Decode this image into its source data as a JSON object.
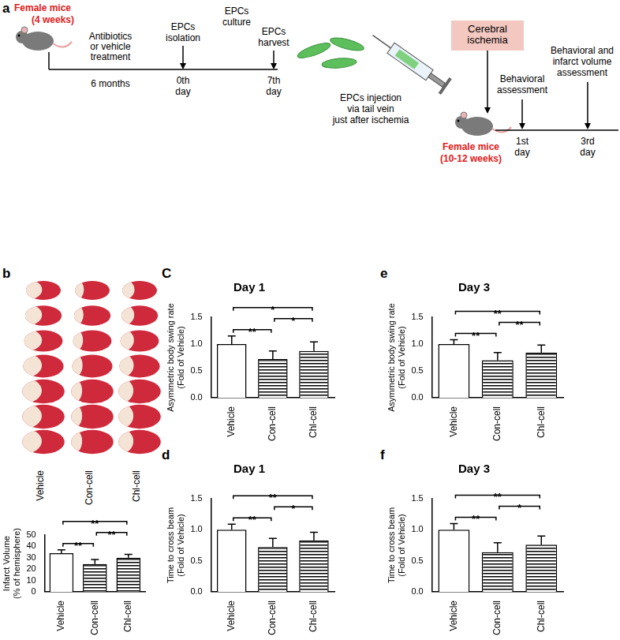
{
  "panel_labels": [
    "a",
    "b",
    "C",
    "d",
    "e",
    "f"
  ],
  "timeline": {
    "start_subject": [
      "Female mice",
      "(4 weeks)"
    ],
    "treatment": [
      "Antibiotics",
      "or vehicle",
      "treatment"
    ],
    "duration": "6 months",
    "steps": [
      {
        "label": [
          "EPCs",
          "isolation"
        ],
        "time": [
          "0th",
          "day"
        ]
      },
      {
        "label": [
          "EPCs",
          "culture"
        ]
      },
      {
        "label": [
          "EPCs",
          "harvest"
        ],
        "time": [
          "7th",
          "day"
        ]
      }
    ],
    "injection": [
      "EPCs injection",
      "via tail vein",
      "just after ischemia"
    ],
    "event": [
      "Cerebral",
      "ischemia"
    ],
    "end_subject": [
      "Female mice",
      "(10-12 weeks)"
    ],
    "assessments": [
      {
        "label": [
          "Behavioral",
          "assessment"
        ],
        "time": [
          "1st",
          "day"
        ]
      },
      {
        "label": [
          "Behavioral and",
          "infarct volume",
          "assessment"
        ],
        "time": [
          "3rd",
          "day"
        ]
      }
    ]
  },
  "images": {
    "labels": [
      "Vehicle",
      "Con-cell",
      "Chl-cell"
    ]
  },
  "chart_data": [
    {
      "type": "bar",
      "y_label": [
        "Infarct Volume",
        "(% of hemisphere)"
      ],
      "categories": [
        "Vehicle",
        "Con-cell",
        "Chl-cell"
      ],
      "values": [
        34,
        24.5,
        30
      ],
      "errors": [
        3,
        4,
        3
      ],
      "colors": [
        "#ffffff",
        "#000000",
        "#000000"
      ],
      "ylim": [
        0,
        50
      ],
      "yticks": [
        0,
        10,
        20,
        30,
        40,
        50
      ],
      "grid": false,
      "significance": [
        {
          "from": "Vehicle",
          "to": "Con-cell",
          "label": "**"
        },
        {
          "from": "Vehicle",
          "to": "Chl-cell",
          "label": "**"
        },
        {
          "from": "Con-cell",
          "to": "Chl-cell",
          "label": "**"
        }
      ]
    },
    {
      "type": "bar",
      "title": "Day 1",
      "y_label": [
        "Asymmetric body swing rate",
        "(Fold of Vehicle)"
      ],
      "categories": [
        "Vehicle",
        "Con-cell",
        "Chl-cell"
      ],
      "values": [
        1.0,
        0.72,
        0.87
      ],
      "errors": [
        0.15,
        0.15,
        0.17
      ],
      "colors": [
        "#ffffff",
        "#000000",
        "#000000"
      ],
      "ylim": [
        0,
        1.5
      ],
      "yticks": [
        {
          "value": 0,
          "label": "0.0"
        },
        {
          "value": 0.5,
          "label": "0.5"
        },
        {
          "value": 1,
          "label": "1.0"
        },
        {
          "value": 1.5,
          "label": "1.5"
        }
      ],
      "grid": false,
      "significance": [
        {
          "from": "Vehicle",
          "to": "Con-cell",
          "label": "**"
        },
        {
          "from": "Vehicle",
          "to": "Chl-cell",
          "label": "*"
        },
        {
          "from": "Con-cell",
          "to": "Chl-cell",
          "label": "*"
        }
      ]
    },
    {
      "type": "bar",
      "title": "Day 1",
      "y_label": [
        "Time to cross beam",
        "(Fold of Vehicle)"
      ],
      "categories": [
        "Vehicle",
        "Con-cell",
        "Chl-cell"
      ],
      "values": [
        1.0,
        0.72,
        0.83
      ],
      "errors": [
        0.09,
        0.14,
        0.13
      ],
      "colors": [
        "#ffffff",
        "#000000",
        "#000000"
      ],
      "ylim": [
        0,
        1.5
      ],
      "yticks": [
        {
          "value": 0,
          "label": "0.0"
        },
        {
          "value": 0.5,
          "label": "0.5"
        },
        {
          "value": 1,
          "label": "1.0"
        },
        {
          "value": 1.5,
          "label": "1.5"
        }
      ],
      "grid": false,
      "significance": [
        {
          "from": "Vehicle",
          "to": "Con-cell",
          "label": "**"
        },
        {
          "from": "Vehicle",
          "to": "Chl-cell",
          "label": "**"
        },
        {
          "from": "Con-cell",
          "to": "Chl-cell",
          "label": "*"
        }
      ]
    },
    {
      "type": "bar",
      "title": "Day 3",
      "y_label": [
        "Asymmetric body swing rate",
        "(Fold of Vehicle)"
      ],
      "categories": [
        "Vehicle",
        "Con-cell",
        "Chl-cell"
      ],
      "values": [
        1.0,
        0.7,
        0.84
      ],
      "errors": [
        0.08,
        0.14,
        0.14
      ],
      "colors": [
        "#ffffff",
        "#000000",
        "#000000"
      ],
      "ylim": [
        0,
        1.5
      ],
      "yticks": [
        {
          "value": 0,
          "label": "0.0"
        },
        {
          "value": 0.5,
          "label": "0.5"
        },
        {
          "value": 1,
          "label": "1.0"
        },
        {
          "value": 1.5,
          "label": "1.5"
        }
      ],
      "grid": false,
      "significance": [
        {
          "from": "Vehicle",
          "to": "Con-cell",
          "label": "**"
        },
        {
          "from": "Vehicle",
          "to": "Chl-cell",
          "label": "**"
        },
        {
          "from": "Con-cell",
          "to": "Chl-cell",
          "label": "**"
        }
      ]
    },
    {
      "type": "bar",
      "title": "Day 3",
      "y_label": [
        "Time to cross beam",
        "(Fold of Vehicle)"
      ],
      "categories": [
        "Vehicle",
        "Con-cell",
        "Chl-cell"
      ],
      "values": [
        1.0,
        0.64,
        0.76
      ],
      "errors": [
        0.1,
        0.15,
        0.14
      ],
      "colors": [
        "#ffffff",
        "#000000",
        "#000000"
      ],
      "ylim": [
        0,
        1.5
      ],
      "yticks": [
        {
          "value": 0,
          "label": "0.0"
        },
        {
          "value": 0.5,
          "label": "0.5"
        },
        {
          "value": 1,
          "label": "1.0"
        },
        {
          "value": 1.5,
          "label": "1.5"
        }
      ],
      "grid": false,
      "significance": [
        {
          "from": "Vehicle",
          "to": "Con-cell",
          "label": "**"
        },
        {
          "from": "Vehicle",
          "to": "Chl-cell",
          "label": "**"
        },
        {
          "from": "Con-cell",
          "to": "Chl-cell",
          "label": "*"
        }
      ]
    }
  ]
}
